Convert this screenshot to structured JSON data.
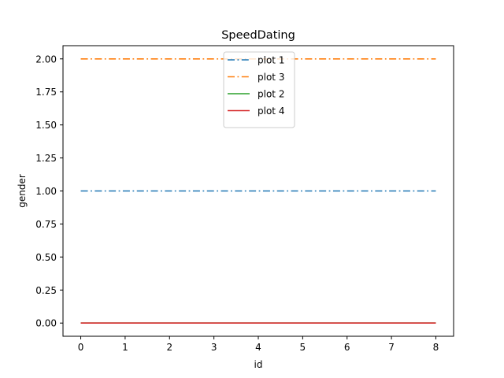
{
  "chart_data": {
    "type": "line",
    "title": "SpeedDating",
    "xlabel": "id",
    "ylabel": "gender",
    "xlim": [
      -0.4,
      8.4
    ],
    "ylim": [
      -0.1,
      2.1
    ],
    "xticks": [
      0,
      1,
      2,
      3,
      4,
      5,
      6,
      7,
      8
    ],
    "xtick_labels": [
      "0",
      "1",
      "2",
      "3",
      "4",
      "5",
      "6",
      "7",
      "8"
    ],
    "yticks": [
      0.0,
      0.25,
      0.5,
      0.75,
      1.0,
      1.25,
      1.5,
      1.75,
      2.0
    ],
    "ytick_labels": [
      "0.00",
      "0.25",
      "0.50",
      "0.75",
      "1.00",
      "1.25",
      "1.50",
      "1.75",
      "2.00"
    ],
    "grid": false,
    "legend_position": "top-center",
    "x": [
      0,
      1,
      2,
      3,
      4,
      5,
      6,
      7,
      8
    ],
    "series": [
      {
        "name": "plot 1",
        "values": [
          1,
          1,
          1,
          1,
          1,
          1,
          1,
          1,
          1
        ],
        "color": "#1f77b4",
        "style": "dashdot"
      },
      {
        "name": "plot 3",
        "values": [
          2,
          2,
          2,
          2,
          2,
          2,
          2,
          2,
          2
        ],
        "color": "#ff7f0e",
        "style": "dashdot"
      },
      {
        "name": "plot 2",
        "values": [
          0,
          0,
          0,
          0,
          0,
          0,
          0,
          0,
          0
        ],
        "color": "#2ca02c",
        "style": "solid"
      },
      {
        "name": "plot 4",
        "values": [
          0,
          0,
          0,
          0,
          0,
          0,
          0,
          0,
          0
        ],
        "color": "#d62728",
        "style": "solid"
      }
    ]
  }
}
